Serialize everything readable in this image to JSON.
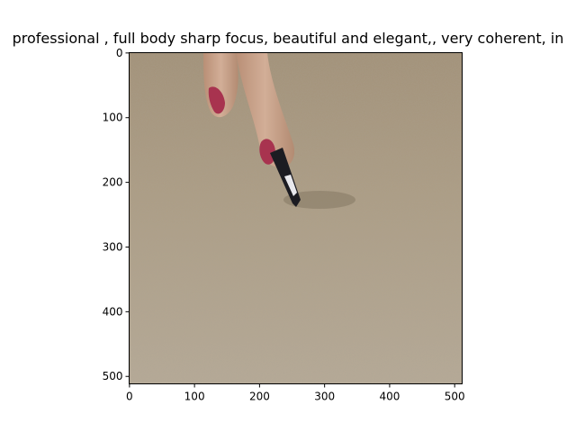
{
  "window": {
    "title": ""
  },
  "chart_data": {
    "type": "image",
    "title": " professional , full body sharp focus,  beautiful and elegant,, very coherent, in",
    "xlabel": "",
    "ylabel": "",
    "xlim": [
      -0.5,
      511.5
    ],
    "ylim": [
      511.5,
      -0.5
    ],
    "x_ticks": [
      0,
      100,
      200,
      300,
      400,
      500
    ],
    "y_ticks": [
      0,
      100,
      200,
      300,
      400,
      500
    ],
    "image": {
      "description_colors": [
        "#a8987f",
        "#b8aa95",
        "#c0a487"
      ],
      "subject": "two fingers holding a small pen-like tool over a textured beige carpet"
    }
  },
  "colors": {
    "background": "#ffffff",
    "axes": "#000000",
    "carpet_base": "#aa9c85",
    "carpet_light": "#bbae98",
    "skin": "#c49f86",
    "nail": "#a8334f"
  },
  "icons": {
    "pen_tip": "pen-icon"
  }
}
